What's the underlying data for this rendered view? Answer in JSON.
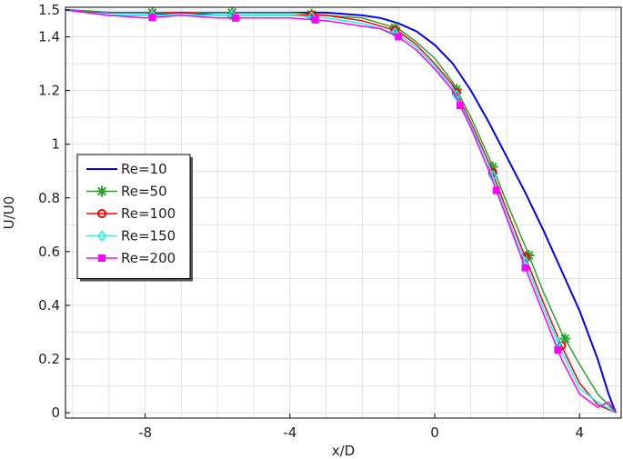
{
  "chart_data": {
    "type": "line",
    "title": "",
    "xlabel": "x/D",
    "ylabel": "U/U0",
    "xlim": [
      -10.2,
      5.15
    ],
    "ylim": [
      -0.02,
      1.51
    ],
    "grid": true,
    "legend_position": "left-middle",
    "xticks": [
      -8,
      -4,
      0,
      4
    ],
    "xtick_labels": [
      "-8",
      "-4",
      "0",
      "4"
    ],
    "yticks": [
      0,
      0.2,
      0.4,
      0.6,
      0.8,
      1,
      1.2,
      1.4,
      1.5
    ],
    "ytick_labels": [
      "0",
      "0.2",
      "0.4",
      "0.6",
      "0.8",
      "1",
      "1.2",
      "1.4",
      "1.5"
    ],
    "series": [
      {
        "name": "Re=10",
        "color": "#0000ff",
        "marker": "none",
        "x": [
          -10.2,
          -9,
          -8,
          -7,
          -6,
          -5,
          -4,
          -3,
          -2,
          -1.5,
          -1,
          -0.5,
          0,
          0.5,
          1,
          1.5,
          2,
          2.5,
          3,
          3.5,
          4,
          4.5,
          4.8,
          5.0
        ],
        "y": [
          1.5,
          1.49,
          1.49,
          1.49,
          1.49,
          1.49,
          1.49,
          1.49,
          1.48,
          1.47,
          1.45,
          1.42,
          1.37,
          1.3,
          1.2,
          1.08,
          0.95,
          0.82,
          0.68,
          0.53,
          0.38,
          0.2,
          0.07,
          0.0
        ],
        "marker_x": []
      },
      {
        "name": "Re=50",
        "color": "#2ca02c",
        "marker": "asterisk",
        "x": [
          -10.2,
          -9,
          -8,
          -7,
          -6,
          -5,
          -4,
          -3,
          -2,
          -1.5,
          -1,
          -0.5,
          0,
          0.5,
          1,
          1.5,
          2,
          2.5,
          3,
          3.5,
          4,
          4.5,
          5.0
        ],
        "y": [
          1.5,
          1.49,
          1.49,
          1.49,
          1.49,
          1.49,
          1.49,
          1.48,
          1.47,
          1.45,
          1.43,
          1.38,
          1.32,
          1.23,
          1.1,
          0.95,
          0.78,
          0.62,
          0.45,
          0.3,
          0.18,
          0.07,
          0.0
        ],
        "marker_x": [
          -7.8,
          -5.6,
          -3.4,
          -1.1,
          0.6,
          1.6,
          2.6,
          3.6
        ]
      },
      {
        "name": "Re=100",
        "color": "#ff0000",
        "marker": "circle",
        "x": [
          -10.2,
          -9,
          -8,
          -7,
          -6,
          -5,
          -4,
          -3,
          -2,
          -1.5,
          -1,
          -0.5,
          0,
          0.5,
          1,
          1.5,
          2,
          2.5,
          3,
          3.5,
          4,
          4.5,
          5.0
        ],
        "y": [
          1.5,
          1.48,
          1.48,
          1.49,
          1.48,
          1.48,
          1.48,
          1.48,
          1.46,
          1.44,
          1.42,
          1.37,
          1.3,
          1.22,
          1.08,
          0.93,
          0.75,
          0.58,
          0.41,
          0.25,
          0.11,
          0.03,
          0.0
        ],
        "marker_x": [
          -7.8,
          -5.6,
          -3.4,
          -1.1,
          0.6,
          1.6,
          2.5,
          3.5
        ]
      },
      {
        "name": "Re=150",
        "color": "#00ffff",
        "marker": "diamond",
        "x": [
          -10.2,
          -9,
          -8,
          -7,
          -6,
          -5,
          -4,
          -3,
          -2,
          -1.5,
          -1,
          -0.5,
          0,
          0.5,
          1,
          1.5,
          2,
          2.5,
          3,
          3.5,
          4,
          4.5,
          5.0
        ],
        "y": [
          1.5,
          1.48,
          1.48,
          1.48,
          1.48,
          1.48,
          1.48,
          1.47,
          1.45,
          1.43,
          1.41,
          1.36,
          1.29,
          1.21,
          1.07,
          0.92,
          0.73,
          0.56,
          0.39,
          0.23,
          0.09,
          0.04,
          0.0
        ],
        "marker_x": [
          -7.8,
          -5.6,
          -3.4,
          -1.1,
          0.6,
          1.6,
          2.5,
          3.4
        ]
      },
      {
        "name": "Re=200",
        "color": "#ff00ff",
        "marker": "square",
        "x": [
          -10.2,
          -9,
          -8,
          -7,
          -6,
          -5,
          -4,
          -3,
          -2,
          -1.5,
          -1,
          -0.5,
          0,
          0.5,
          1,
          1.5,
          2,
          2.5,
          3,
          3.5,
          4,
          4.5,
          4.8,
          5.0
        ],
        "y": [
          1.5,
          1.48,
          1.47,
          1.48,
          1.47,
          1.47,
          1.47,
          1.46,
          1.44,
          1.43,
          1.4,
          1.35,
          1.28,
          1.2,
          1.06,
          0.9,
          0.72,
          0.54,
          0.37,
          0.2,
          0.07,
          0.02,
          0.04,
          0.0
        ],
        "marker_x": [
          -7.8,
          -5.5,
          -3.3,
          -1.0,
          0.7,
          1.7,
          2.5,
          3.4
        ]
      }
    ]
  }
}
